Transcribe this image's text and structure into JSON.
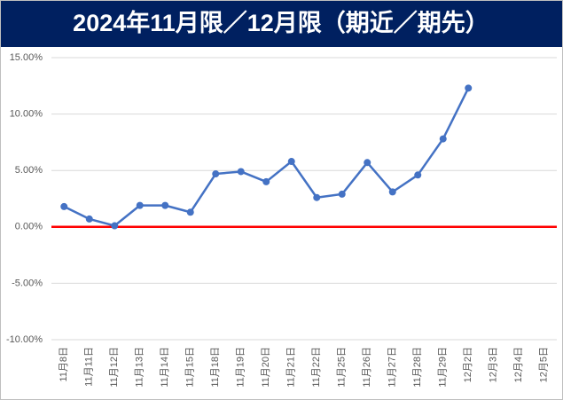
{
  "chart_data": {
    "type": "line",
    "title": "2024年11月限／12月限（期近／期先）",
    "categories": [
      "11月8日",
      "11月11日",
      "11月12日",
      "11月13日",
      "11月14日",
      "11月15日",
      "11月18日",
      "11月19日",
      "11月20日",
      "11月21日",
      "11月22日",
      "11月25日",
      "11月26日",
      "11月27日",
      "11月28日",
      "11月29日",
      "12月2日",
      "12月3日",
      "12月4日",
      "12月5日"
    ],
    "values": [
      1.8,
      0.7,
      0.1,
      1.9,
      1.9,
      1.3,
      4.7,
      4.9,
      4.0,
      5.8,
      2.6,
      2.9,
      5.7,
      3.1,
      4.6,
      7.8,
      12.3,
      null,
      null,
      null
    ],
    "color": "#4472c4",
    "ylim": [
      -10,
      15
    ],
    "yticks": [
      {
        "value": -10,
        "label": "-10.00%"
      },
      {
        "value": -5,
        "label": "-5.00%"
      },
      {
        "value": 0,
        "label": "0.00%"
      },
      {
        "value": 5,
        "label": "5.00%"
      },
      {
        "value": 10,
        "label": "10.00%"
      },
      {
        "value": 15,
        "label": "15.00%"
      }
    ],
    "grid": true,
    "baseline": {
      "value": 0,
      "color": "#ff0000"
    }
  }
}
